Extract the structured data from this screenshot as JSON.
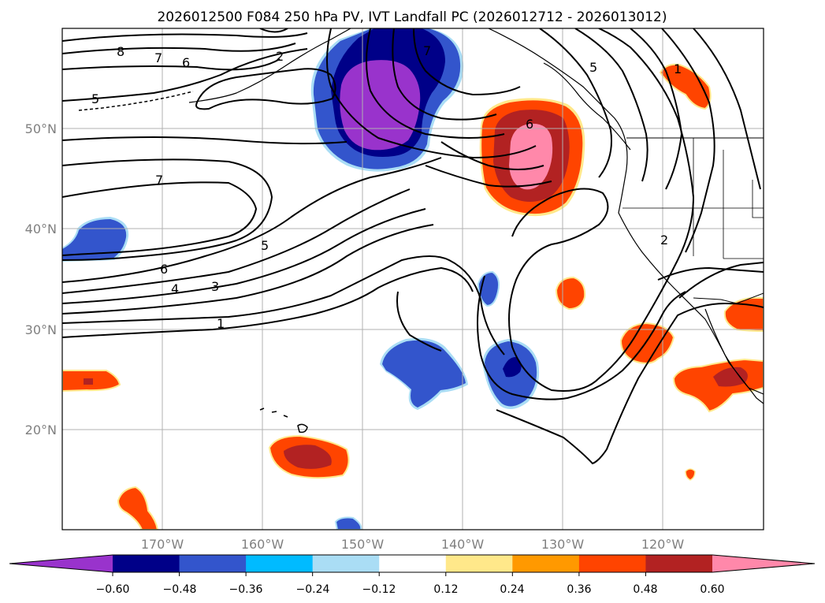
{
  "chart_data": {
    "type": "contour-map",
    "title": "2026012500 F084 250 hPa PV, IVT Landfall PC (2026012712 - 2026013012)",
    "projection": "map (North Pacific / western North America)",
    "lon_range": [
      -180,
      -110
    ],
    "lat_range": [
      10,
      60
    ],
    "lat_ticks": [
      "50°N",
      "40°N",
      "30°N",
      "20°N"
    ],
    "lon_ticks": [
      "170°W",
      "160°W",
      "150°W",
      "140°W",
      "130°W",
      "120°W"
    ],
    "grid": true,
    "colorbar": {
      "orientation": "horizontal",
      "extend": "both",
      "ticks": [
        "−0.60",
        "−0.48",
        "−0.36",
        "−0.24",
        "−0.12",
        "0.12",
        "0.24",
        "0.36",
        "0.48",
        "0.60"
      ],
      "colors": [
        "#9933cc",
        "#000088",
        "#3355cc",
        "#00bbff",
        "#aaddf5",
        "#ffffff",
        "#ffe88a",
        "#ff9900",
        "#ff4400",
        "#b22222",
        "#ff88aa"
      ]
    },
    "contour_labels": [
      "8",
      "7",
      "6",
      "5",
      "2",
      "7",
      "6",
      "5",
      "4",
      "3",
      "1",
      "7",
      "5",
      "6",
      "1",
      "2"
    ],
    "filled_regions": [
      {
        "sign": "negative",
        "approx_center": [
          -146,
          52
        ],
        "peak": "< -0.60"
      },
      {
        "sign": "positive",
        "approx_center": [
          -132,
          46
        ],
        "peak": "> 0.60"
      },
      {
        "sign": "negative",
        "approx_center": [
          -176,
          38
        ],
        "peak": "-0.36"
      },
      {
        "sign": "negative",
        "approx_center": [
          -142,
          26
        ],
        "peak": "-0.36"
      },
      {
        "sign": "negative",
        "approx_center": [
          -134,
          26
        ],
        "peak": "-0.48"
      },
      {
        "sign": "negative",
        "approx_center": [
          -136,
          34
        ],
        "peak": "-0.36"
      },
      {
        "sign": "positive",
        "approx_center": [
          -129,
          34
        ],
        "peak": "0.36"
      },
      {
        "sign": "positive",
        "approx_center": [
          -122,
          29
        ],
        "peak": "0.36"
      },
      {
        "sign": "positive",
        "approx_center": [
          -114,
          25
        ],
        "peak": "0.48"
      },
      {
        "sign": "positive",
        "approx_center": [
          -114,
          31
        ],
        "peak": "0.36"
      },
      {
        "sign": "positive",
        "approx_center": [
          -118,
          55
        ],
        "peak": "0.36"
      },
      {
        "sign": "positive",
        "approx_center": [
          -158,
          17
        ],
        "peak": "0.48"
      },
      {
        "sign": "positive",
        "approx_center": [
          -176,
          25
        ],
        "peak": "0.36"
      },
      {
        "sign": "positive",
        "approx_center": [
          -172,
          12
        ],
        "peak": "0.36"
      },
      {
        "sign": "positive",
        "approx_center": [
          -117,
          15
        ],
        "peak": "0.36"
      },
      {
        "sign": "negative",
        "approx_center": [
          -148,
          10
        ],
        "peak": "-0.36"
      }
    ]
  }
}
